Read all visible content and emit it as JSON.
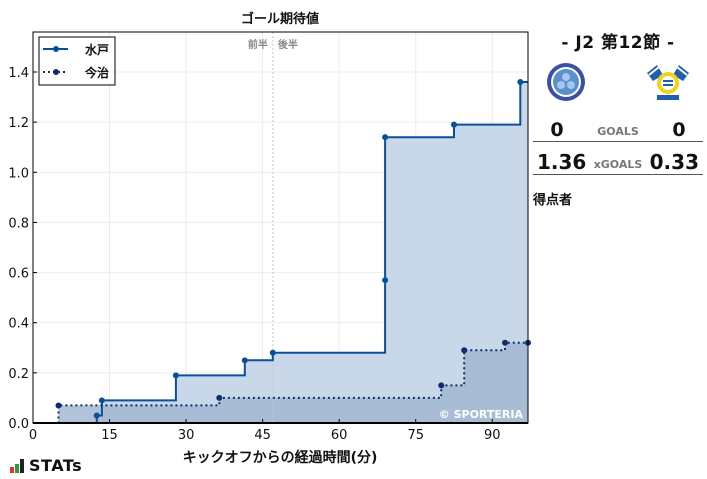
{
  "chart_data": {
    "type": "line",
    "step": true,
    "title": "ゴール期待値",
    "xlabel": "キックオフからの経過時間(分)",
    "ylabel": "",
    "xlim": [
      0,
      97
    ],
    "ylim": [
      0,
      1.55
    ],
    "xticks": [
      0,
      15,
      30,
      45,
      60,
      75,
      90
    ],
    "yticks": [
      0.0,
      0.2,
      0.4,
      0.6,
      0.8,
      1.0,
      1.2,
      1.4
    ],
    "ytick_labels": [
      "0.0",
      "0.2",
      "0.4",
      "0.6",
      "0.8",
      "1.0",
      "1.2",
      "1.4"
    ],
    "grid": true,
    "legend_position": "upper left",
    "half_divider": {
      "x": 47,
      "labels": [
        "前半",
        "後半"
      ]
    },
    "watermark": "© SPORTERIA",
    "series": [
      {
        "name": "水戸",
        "style": "solid",
        "color": "#0a4f9a",
        "fill": "#c9d8e8",
        "points": [
          [
            12.5,
            0.03
          ],
          [
            13.5,
            0.09
          ],
          [
            28,
            0.19
          ],
          [
            41.5,
            0.25
          ],
          [
            47,
            0.28
          ],
          [
            69,
            0.57
          ],
          [
            69,
            1.14
          ],
          [
            82.5,
            1.19
          ],
          [
            95.5,
            1.36
          ]
        ],
        "final": 1.36
      },
      {
        "name": "今治",
        "style": "dotted",
        "color": "#0d2d6b",
        "fill": "#a3b7d2",
        "points": [
          [
            5,
            0.07
          ],
          [
            36.5,
            0.1
          ],
          [
            80,
            0.15
          ],
          [
            84.5,
            0.29
          ],
          [
            92.5,
            0.32
          ],
          [
            97,
            0.32
          ]
        ],
        "final": 0.33
      }
    ]
  },
  "chart": {
    "title": "ゴール期待値",
    "xlabel": "キックオフからの経過時間(分)",
    "first_half": "前半",
    "second_half": "後半",
    "watermark": "© SPORTERIA",
    "legend": [
      {
        "label": "水戸"
      },
      {
        "label": "今治"
      }
    ]
  },
  "panel": {
    "match_title": "- J2 第12節 -",
    "home": {
      "name": "水戸",
      "logo": "mito-hollyhock-crest-icon",
      "goals": "0",
      "xgoals": "1.36"
    },
    "away": {
      "name": "今治",
      "logo": "fc-imabari-crest-icon",
      "goals": "0",
      "xgoals": "0.33"
    },
    "goals_label": "GOALS",
    "xgoals_label": "xGOALS",
    "scorers_label": "得点者"
  },
  "branding": {
    "stats_label": "STATs",
    "colors": [
      "#e8312a",
      "#2e9a3a",
      "#222222"
    ]
  }
}
